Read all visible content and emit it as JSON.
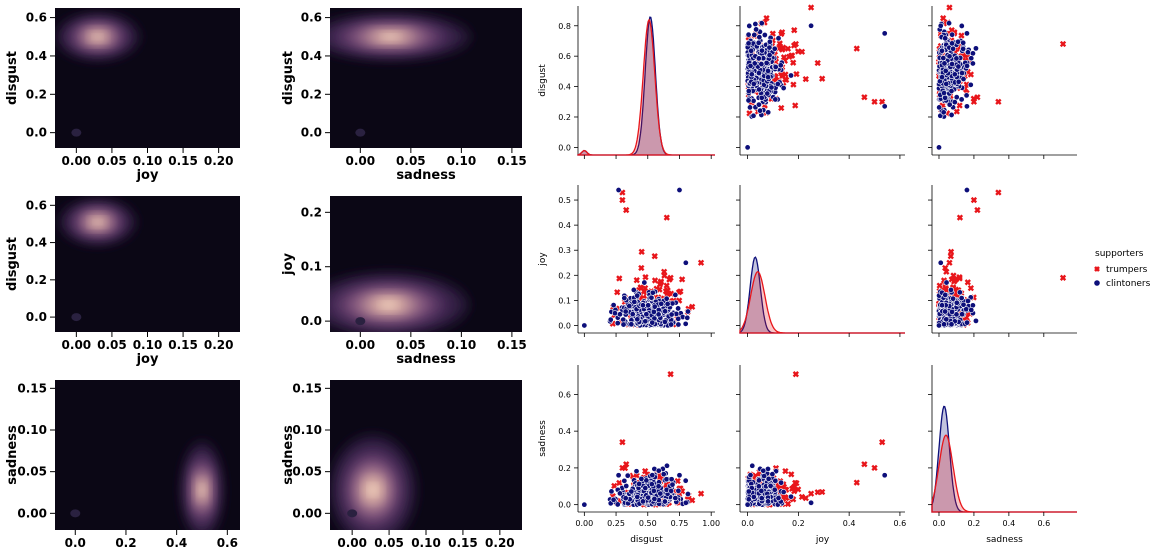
{
  "chart_data": {
    "type": "figure",
    "kde_panels": [
      {
        "type": "heatmap",
        "kind": "kde",
        "xlabel": "joy",
        "ylabel": "disgust",
        "xlim": [
          -0.03,
          0.23
        ],
        "ylim": [
          -0.08,
          0.65
        ],
        "xticks": [
          "0.00",
          "0.05",
          "0.10",
          "0.15",
          "0.20"
        ],
        "yticks": [
          "0.0",
          "0.2",
          "0.4",
          "0.6"
        ],
        "modes": [
          {
            "x": 0.03,
            "y": 0.5,
            "sx": 0.022,
            "sy": 0.045
          }
        ]
      },
      {
        "type": "heatmap",
        "kind": "kde",
        "xlabel": "sadness",
        "ylabel": "disgust",
        "xlim": [
          -0.03,
          0.16
        ],
        "ylim": [
          -0.08,
          0.65
        ],
        "xticks": [
          "0.00",
          "0.05",
          "0.10",
          "0.15"
        ],
        "yticks": [
          "0.0",
          "0.2",
          "0.4",
          "0.6"
        ],
        "modes": [
          {
            "x": 0.03,
            "y": 0.5,
            "sx": 0.03,
            "sy": 0.045
          }
        ]
      },
      {
        "type": "heatmap",
        "kind": "kde",
        "xlabel": "joy",
        "ylabel": "disgust",
        "xlim": [
          -0.03,
          0.23
        ],
        "ylim": [
          -0.08,
          0.65
        ],
        "xticks": [
          "0.00",
          "0.05",
          "0.10",
          "0.15",
          "0.20"
        ],
        "yticks": [
          "0.0",
          "0.2",
          "0.4",
          "0.6"
        ],
        "modes": [
          {
            "x": 0.03,
            "y": 0.51,
            "sx": 0.02,
            "sy": 0.045
          }
        ]
      },
      {
        "type": "heatmap",
        "kind": "kde",
        "xlabel": "sadness",
        "ylabel": "joy",
        "xlim": [
          -0.03,
          0.16
        ],
        "ylim": [
          -0.02,
          0.23
        ],
        "xticks": [
          "0.00",
          "0.05",
          "0.10",
          "0.15"
        ],
        "yticks": [
          "0.0",
          "0.1",
          "0.2"
        ],
        "modes": [
          {
            "x": 0.028,
            "y": 0.03,
            "sx": 0.03,
            "sy": 0.022
          }
        ]
      },
      {
        "type": "heatmap",
        "kind": "kde",
        "xlabel": "disgust",
        "ylabel": "sadness",
        "xlim": [
          -0.08,
          0.65
        ],
        "ylim": [
          -0.02,
          0.16
        ],
        "xticks": [
          "0.0",
          "0.2",
          "0.4",
          "0.6"
        ],
        "yticks": [
          "0.00",
          "0.05",
          "0.10",
          "0.15"
        ],
        "modes": [
          {
            "x": 0.5,
            "y": 0.028,
            "sx": 0.03,
            "sy": 0.022
          }
        ]
      },
      {
        "type": "heatmap",
        "kind": "kde",
        "xlabel": "joy",
        "ylabel": "sadness",
        "xlim": [
          -0.03,
          0.23
        ],
        "ylim": [
          -0.02,
          0.16
        ],
        "xticks": [
          "0.00",
          "0.05",
          "0.10",
          "0.15",
          "0.20"
        ],
        "yticks": [
          "0.00",
          "0.05",
          "0.10",
          "0.15"
        ],
        "modes": [
          {
            "x": 0.028,
            "y": 0.028,
            "sx": 0.022,
            "sy": 0.025
          }
        ]
      }
    ],
    "pairplot": {
      "type": "scatter",
      "variables": [
        "disgust",
        "joy",
        "sadness"
      ],
      "axes": {
        "disgust": {
          "lim": [
            -0.05,
            1.03
          ],
          "ticks": [
            "0.00",
            "0.25",
            "0.50",
            "0.75",
            "1.00"
          ],
          "yticks": [
            "0.0",
            "0.2",
            "0.4",
            "0.6",
            "0.8"
          ],
          "ylim": [
            -0.05,
            0.93
          ]
        },
        "joy": {
          "lim": [
            -0.03,
            0.62
          ],
          "ticks": [
            "0.0",
            "0.2",
            "0.4",
            "0.6"
          ],
          "yticks": [
            "0.0",
            "0.1",
            "0.2",
            "0.3",
            "0.4",
            "0.5"
          ],
          "ylim": [
            -0.03,
            0.56
          ]
        },
        "sadness": {
          "lim": [
            -0.04,
            0.79
          ],
          "ticks": [
            "0.0",
            "0.2",
            "0.4",
            "0.6"
          ],
          "yticks": [
            "0.0",
            "0.2",
            "0.4",
            "0.6"
          ],
          "ylim": [
            -0.04,
            0.76
          ]
        }
      },
      "legend": {
        "title": "supporters",
        "placement": "right"
      },
      "series": [
        {
          "name": "trumpers",
          "color": "#e8161b",
          "marker": "x",
          "center": {
            "disgust": 0.52,
            "joy": 0.065,
            "sadness": 0.08
          },
          "spread": {
            "disgust": 0.13,
            "joy": 0.075,
            "sadness": 0.06
          },
          "outliers": [
            {
              "disgust": 0.3,
              "joy": 0.5,
              "sadness": 0.2
            },
            {
              "disgust": 0.68,
              "joy": 0.19,
              "sadness": 0.71
            },
            {
              "disgust": 0.33,
              "joy": 0.46,
              "sadness": 0.22
            },
            {
              "disgust": 0.3,
              "joy": 0.53,
              "sadness": 0.34
            },
            {
              "disgust": 0.65,
              "joy": 0.43,
              "sadness": 0.12
            },
            {
              "disgust": 0.92,
              "joy": 0.25,
              "sadness": 0.06
            }
          ]
        },
        {
          "name": "clintoners",
          "color": "#0d0f7a",
          "marker": "o",
          "center": {
            "disgust": 0.5,
            "joy": 0.045,
            "sadness": 0.07
          },
          "spread": {
            "disgust": 0.12,
            "joy": 0.05,
            "sadness": 0.05
          },
          "outliers": [
            {
              "disgust": 0.27,
              "joy": 0.54,
              "sadness": 0.16
            },
            {
              "disgust": 0.75,
              "joy": 0.54,
              "sadness": 0.16
            },
            {
              "disgust": 0.8,
              "joy": 0.25,
              "sadness": 0.01
            },
            {
              "disgust": 0.0,
              "joy": 0.0,
              "sadness": 0.0
            }
          ]
        }
      ],
      "kde_peaks": {
        "disgust": {
          "trumpers": {
            "mu": 0.51,
            "sigma": 0.045,
            "peak": 0.92
          },
          "clintoners": {
            "mu": 0.52,
            "sigma": 0.04,
            "peak": 0.94
          }
        },
        "joy": {
          "trumpers": {
            "mu": 0.04,
            "sigma": 0.028,
            "peak": 0.42
          },
          "clintoners": {
            "mu": 0.03,
            "sigma": 0.02,
            "peak": 0.52
          }
        },
        "sadness": {
          "trumpers": {
            "mu": 0.04,
            "sigma": 0.04,
            "peak": 0.53
          },
          "clintoners": {
            "mu": 0.03,
            "sigma": 0.03,
            "peak": 0.73
          }
        }
      }
    }
  },
  "legend": {
    "title": "supporters",
    "items": [
      "trumpers",
      "clintoners"
    ]
  }
}
